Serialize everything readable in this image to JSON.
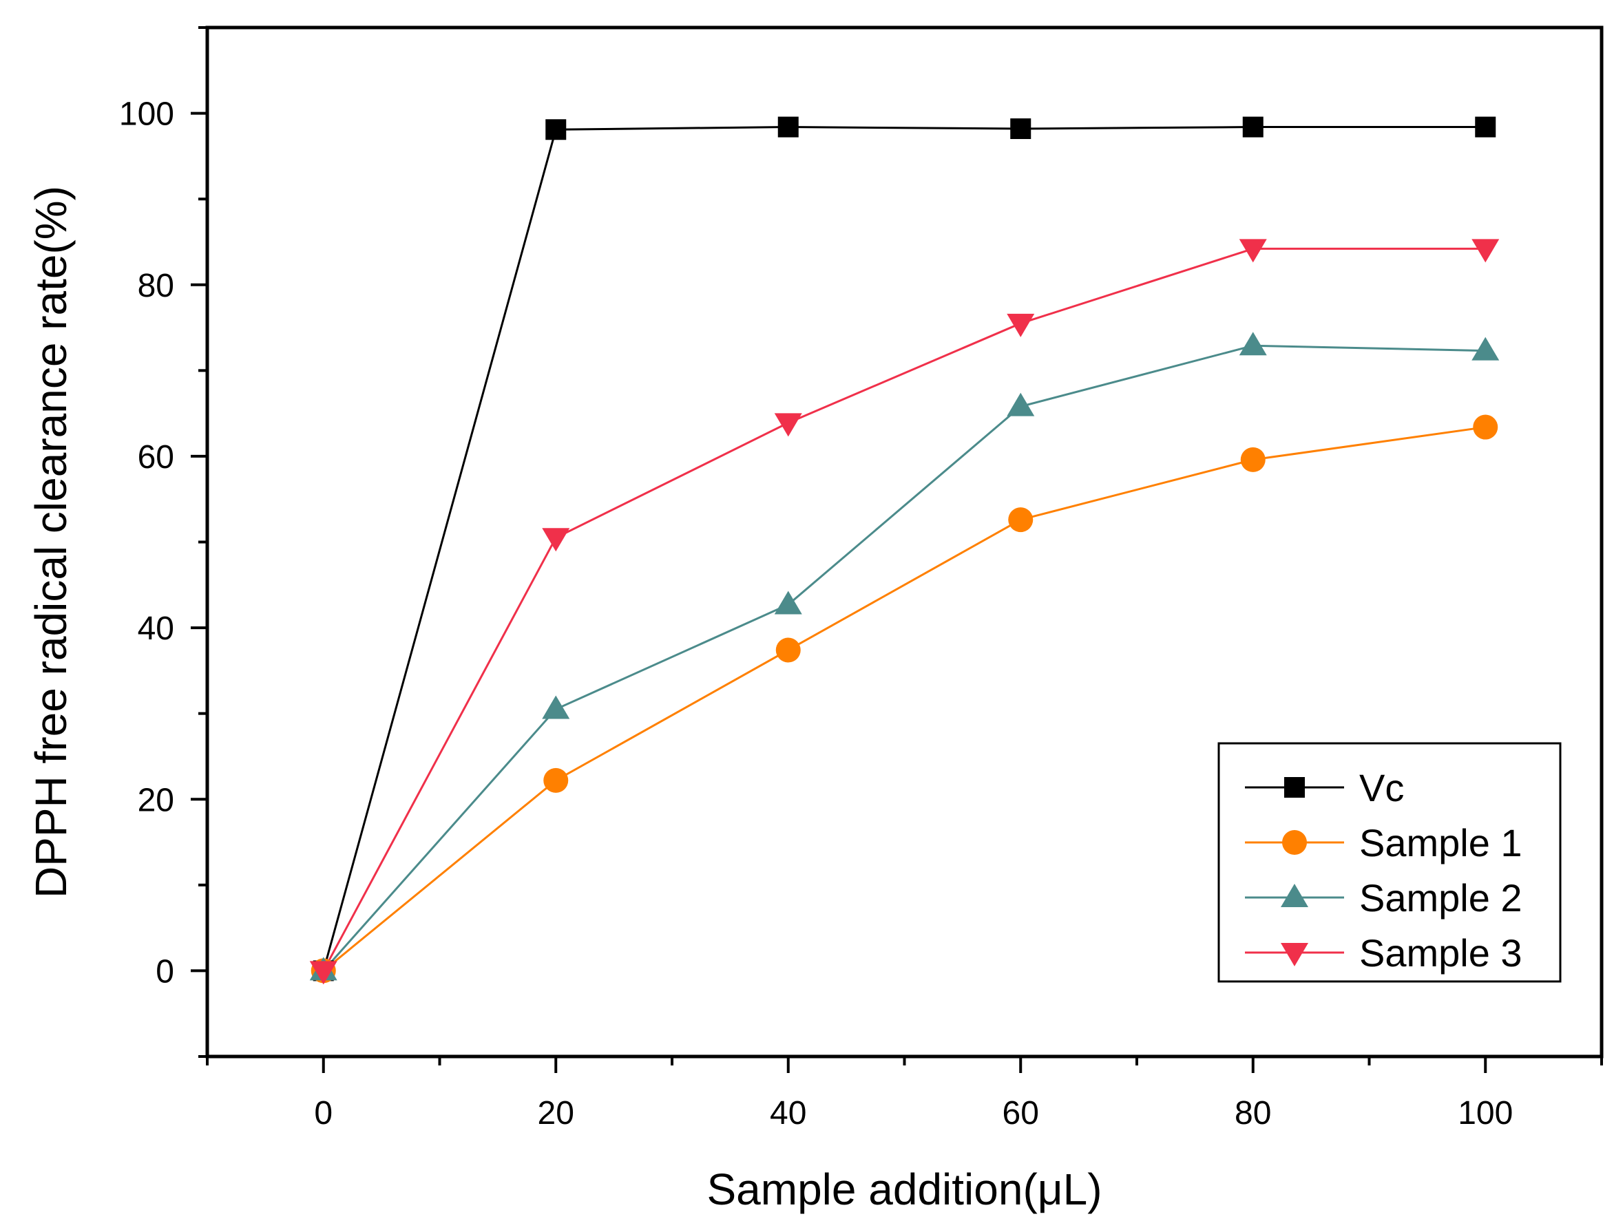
{
  "chart_data": {
    "type": "line",
    "title": "",
    "xlabel": "Sample addition(μL)",
    "ylabel": "DPPH free radical clearance rate(%)",
    "xlim": [
      -10,
      110
    ],
    "ylim": [
      -10,
      110
    ],
    "x_ticks": [
      0,
      20,
      40,
      60,
      80,
      100
    ],
    "y_ticks": [
      0,
      20,
      40,
      60,
      80,
      100
    ],
    "x": [
      0,
      20,
      40,
      60,
      80,
      100
    ],
    "legend_position": "bottom-right",
    "grid": false,
    "series": [
      {
        "name": "Vc",
        "color": "#000000",
        "marker": "square",
        "values": [
          0,
          98.1,
          98.4,
          98.2,
          98.4,
          98.4
        ]
      },
      {
        "name": "Sample 1",
        "color": "#ff8000",
        "marker": "circle",
        "values": [
          0,
          22.2,
          37.4,
          52.6,
          59.6,
          63.4
        ]
      },
      {
        "name": "Sample 2",
        "color": "#4b8b8b",
        "marker": "triangle-up",
        "values": [
          0,
          30.5,
          42.7,
          65.8,
          72.9,
          72.3
        ]
      },
      {
        "name": "Sample 3",
        "color": "#f0304a",
        "marker": "triangle-down",
        "values": [
          0,
          50.5,
          63.9,
          75.5,
          84.2,
          84.2
        ]
      }
    ]
  }
}
